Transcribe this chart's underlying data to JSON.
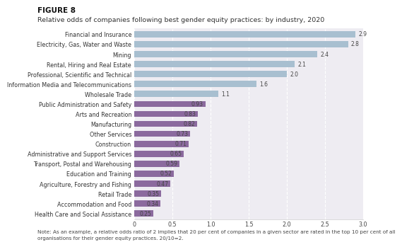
{
  "title_bold": "FIGURE 8",
  "title": "Relative odds of companies following best gender equity practices: by industry, 2020",
  "note": "Note: As an example, a relative odds ratio of 2 implies that 20 per cent of companies in a given sector are rated in the top 10 per cent of all\norganisations for their gender equity practices. 20/10=2.",
  "categories": [
    "Financial and Insurance",
    "Electricity, Gas, Water and Waste",
    "Mining",
    "Rental, Hiring and Real Estate",
    "Professional, Scientific and Technical",
    "Information Media and Telecommunications",
    "Wholesale Trade",
    "Public Administration and Safety",
    "Arts and Recreation",
    "Manufacturing",
    "Other Services",
    "Construction",
    "Administrative and Support Services",
    "Transport, Postal and Warehousing",
    "Education and Training",
    "Agriculture, Forestry and Fishing",
    "Retail Trade",
    "Accommodation and Food",
    "Health Care and Social Assistance"
  ],
  "values": [
    2.9,
    2.8,
    2.4,
    2.1,
    2.0,
    1.6,
    1.1,
    0.93,
    0.83,
    0.82,
    0.73,
    0.71,
    0.65,
    0.59,
    0.52,
    0.47,
    0.35,
    0.34,
    0.25
  ],
  "color_above": "#a8bfd0",
  "color_below": "#8b6a9e",
  "threshold": 1.0,
  "xlim": [
    0,
    3.0
  ],
  "xtick_vals": [
    0,
    0.5,
    1.0,
    1.5,
    2.0,
    2.5,
    3.0
  ],
  "xtick_labels": [
    "0",
    "0.5",
    "1.0",
    "1.5",
    "2.0",
    "2.5",
    "3.0"
  ],
  "background_color": "#eeecf2",
  "fig_background": "#ffffff",
  "label_fontsize": 5.8,
  "value_fontsize": 5.5,
  "title_fontsize": 6.8,
  "title_bold_fontsize": 7.5,
  "note_fontsize": 5.2,
  "grid_color": "#ffffff",
  "grid_linestyle": "--",
  "grid_linewidth": 0.8,
  "bar_height": 0.62
}
